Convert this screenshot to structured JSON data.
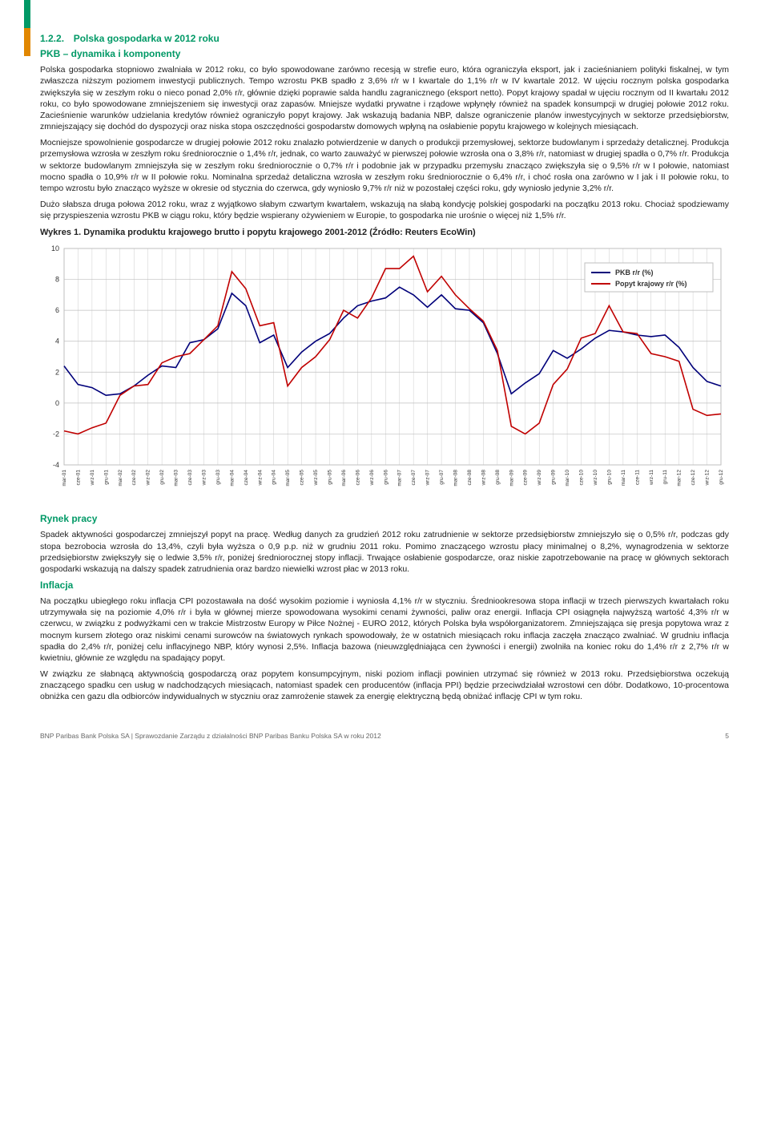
{
  "section": {
    "num": "1.2.2.",
    "title": "Polska gospodarka w 2012 roku",
    "sub1": "PKB – dynamika i komponenty",
    "p1": "Polska gospodarka stopniowo zwalniała w 2012 roku, co było spowodowane zarówno recesją w strefie euro, która ograniczyła eksport, jak i zacieśnianiem polityki fiskalnej, w tym zwłaszcza niższym poziomem inwestycji publicznych. Tempo wzrostu PKB spadło z 3,6% r/r w I kwartale do 1,1% r/r w IV kwartale 2012. W ujęciu rocznym polska gospodarka zwiększyła się w zeszłym roku o nieco ponad 2,0% r/r, głównie dzięki poprawie salda handlu zagranicznego (eksport netto). Popyt krajowy spadał w ujęciu rocznym od II kwartału 2012 roku, co było spowodowane zmniejszeniem się inwestycji oraz zapasów. Mniejsze wydatki prywatne i rządowe wpłynęły również na spadek konsumpcji w drugiej połowie 2012 roku. Zacieśnienie warunków udzielania kredytów również ograniczyło popyt krajowy. Jak wskazują badania NBP, dalsze ograniczenie planów inwestycyjnych w sektorze przedsiębiorstw, zmniejszający się dochód do dyspozycji oraz niska stopa oszczędności gospodarstw domowych wpłyną na osłabienie popytu krajowego w kolejnych miesiącach.",
    "p2": "Mocniejsze spowolnienie gospodarcze w drugiej połowie 2012 roku znalazło potwierdzenie w danych o produkcji przemysłowej, sektorze budowlanym i sprzedaży detalicznej. Produkcja przemysłowa wzrosła w zeszłym roku średniorocznie o 1,4% r/r, jednak, co warto zauważyć w pierwszej połowie wzrosła ona o 3,8% r/r, natomiast w drugiej spadła o 0,7% r/r. Produkcja w sektorze budowlanym zmniejszyła się w zeszłym roku średniorocznie o 0,7% r/r i podobnie jak w przypadku przemysłu znacząco zwiększyła się o 9,5% r/r w I połowie, natomiast mocno spadła o 10,9% r/r w II połowie roku. Nominalna sprzedaż detaliczna wzrosła w zeszłym roku średniorocznie o 6,4% r/r, i choć rosła ona zarówno w I jak i II połowie roku, to tempo wzrostu było znacząco wyższe w okresie od stycznia do czerwca, gdy wyniosło 9,7% r/r niż w pozostałej części roku, gdy wyniosło jedynie 3,2% r/r.",
    "p3": "Dużo słabsza druga połowa 2012 roku, wraz z wyjątkowo słabym czwartym kwartałem, wskazują na słabą kondycję polskiej gospodarki na początku 2013 roku. Chociaż spodziewamy się przyspieszenia wzrostu PKB w ciągu roku, który będzie wspierany ożywieniem w Europie, to gospodarka nie urośnie o więcej niż 1,5% r/r.",
    "chart_title": "Wykres 1. Dynamika produktu krajowego brutto i popytu krajowego 2001-2012 (Źródło: Reuters EcoWin)",
    "sub2": "Rynek pracy",
    "p4": "Spadek aktywności gospodarczej zmniejszył popyt na pracę. Według danych za grudzień 2012 roku zatrudnienie w sektorze przedsiębiorstw zmniejszyło się o 0,5% r/r, podczas gdy stopa bezrobocia wzrosła do 13,4%, czyli była wyższa o 0,9 p.p. niż w grudniu 2011 roku. Pomimo znaczącego wzrostu płacy minimalnej o 8,2%, wynagrodzenia w sektorze przedsiębiorstw zwiększyły się o ledwie 3,5% r/r, poniżej średniorocznej stopy inflacji. Trwające osłabienie gospodarcze, oraz niskie zapotrzebowanie na pracę w głównych sektorach gospodarki wskazują na dalszy spadek zatrudnienia oraz bardzo niewielki wzrost płac w 2013 roku.",
    "sub3": "Inflacja",
    "p5": "Na początku ubiegłego roku inflacja CPI pozostawała na dość wysokim poziomie i wyniosła 4,1% r/r w styczniu. Średniookresowa stopa inflacji w trzech pierwszych kwartałach roku utrzymywała się na poziomie 4,0% r/r i była w głównej mierze spowodowana wysokimi cenami żywności, paliw oraz energii. Inflacja CPI osiągnęła najwyższą wartość 4,3% r/r w czerwcu, w związku z podwyżkami cen w trakcie Mistrzostw Europy w Piłce Nożnej - EURO 2012, których Polska była współorganizatorem. Zmniejszająca się presja popytowa wraz z mocnym kursem złotego oraz niskimi cenami surowców na światowych rynkach spowodowały, że w ostatnich miesiącach roku inflacja zaczęła znacząco zwalniać. W grudniu inflacja spadła do 2,4% r/r, poniżej celu inflacyjnego NBP, który wynosi 2,5%. Inflacja bazowa (nieuwzględniająca cen żywności i energii) zwolniła na koniec roku do 1,4% r/r z 2,7% r/r w kwietniu, głównie ze względu na spadający popyt.",
    "p6": "W związku ze słabnącą aktywnością gospodarczą oraz popytem konsumpcyjnym, niski poziom inflacji powinien utrzymać się również w 2013 roku. Przedsiębiorstwa oczekują znaczącego spadku cen usług w nadchodzących miesiącach, natomiast spadek cen producentów (inflacja PPI) będzie przeciwdziałał wzrostowi cen dóbr. Dodatkowo, 10-procentowa obniżka cen gazu dla odbiorców indywidualnych w styczniu oraz zamrożenie stawek za energię elektryczną będą obniżać inflację CPI w tym roku."
  },
  "chart": {
    "legend1": "PKB r/r (%)",
    "legend2": "Popyt krajowy r/r (%)",
    "y_ticks": [
      -4,
      -2,
      0,
      2,
      4,
      6,
      8,
      10
    ],
    "ylim": [
      -4,
      10
    ],
    "x_labels": [
      "mar-01",
      "cze-01",
      "wrz-01",
      "gru-01",
      "mar-02",
      "cze-02",
      "wrz-02",
      "gru-02",
      "mar-03",
      "cze-03",
      "wrz-03",
      "gru-03",
      "mar-04",
      "cze-04",
      "wrz-04",
      "gru-04",
      "mar-05",
      "cze-05",
      "wrz-05",
      "gru-05",
      "mar-06",
      "cze-06",
      "wrz-06",
      "gru-06",
      "mar-07",
      "cze-07",
      "wrz-07",
      "gru-07",
      "mar-08",
      "cze-08",
      "wrz-08",
      "gru-08",
      "mar-09",
      "cze-09",
      "wrz-09",
      "gru-09",
      "mar-10",
      "cze-10",
      "wrz-10",
      "gru-10",
      "mar-11",
      "cze-11",
      "wrz-11",
      "gru-11",
      "mar-12",
      "cze-12",
      "wrz-12",
      "gru-12"
    ],
    "series1_color": "#00007a",
    "series2_color": "#c00000",
    "grid_color": "#bfbfbf",
    "bg": "#ffffff",
    "series1": [
      2.4,
      1.2,
      1.0,
      0.5,
      0.6,
      1.1,
      1.8,
      2.4,
      2.3,
      3.9,
      4.1,
      4.8,
      7.1,
      6.3,
      3.9,
      4.4,
      2.3,
      3.3,
      4.0,
      4.5,
      5.5,
      6.3,
      6.6,
      6.8,
      7.5,
      7.0,
      6.2,
      7.0,
      6.1,
      6.0,
      5.2,
      3.2,
      0.6,
      1.3,
      1.9,
      3.4,
      2.9,
      3.5,
      4.2,
      4.7,
      4.6,
      4.4,
      4.3,
      4.4,
      3.6,
      2.3,
      1.4,
      1.1
    ],
    "series2": [
      -1.8,
      -2.0,
      -1.6,
      -1.3,
      0.5,
      1.1,
      1.2,
      2.6,
      3.0,
      3.2,
      4.1,
      5.0,
      8.5,
      7.4,
      5.0,
      5.2,
      1.1,
      2.3,
      3.0,
      4.1,
      6.0,
      5.5,
      6.8,
      8.7,
      8.7,
      9.5,
      7.2,
      8.2,
      7.0,
      6.1,
      5.3,
      3.4,
      -1.5,
      -2.0,
      -1.3,
      1.2,
      2.2,
      4.2,
      4.5,
      6.3,
      4.6,
      4.5,
      3.2,
      3.0,
      2.7,
      -0.4,
      -0.8,
      -0.7
    ]
  },
  "footer": {
    "left": "BNP Paribas Bank Polska SA | Sprawozdanie Zarządu z działalności BNP Paribas Banku Polska SA w roku 2012",
    "page": "5"
  }
}
